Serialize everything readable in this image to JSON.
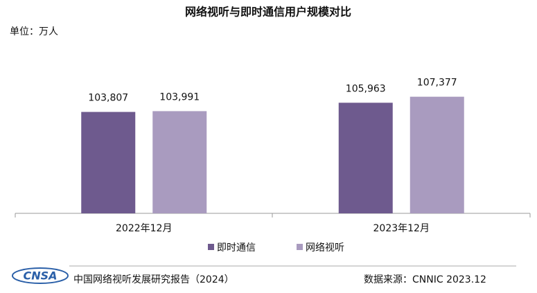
{
  "chart_data": {
    "type": "bar",
    "title": "网络视听与即时通信用户规模对比",
    "unit_label": "单位：万人",
    "categories": [
      "2022年12月",
      "2023年12月"
    ],
    "series": [
      {
        "name": "即时通信",
        "color": "#6e5a8e",
        "values": [
          103807,
          105963
        ],
        "value_labels": [
          "103,807",
          "105,963"
        ]
      },
      {
        "name": "网络视听",
        "color": "#a99bbf",
        "values": [
          103991,
          107377
        ],
        "value_labels": [
          "103,991",
          "107,377"
        ]
      }
    ],
    "ylim": [
      80000,
      120000
    ],
    "footer": {
      "logo": "CNSA",
      "report": "中国网络视听发展研究报告（2024）",
      "source": "数据来源：CNNIC  2023.12"
    }
  }
}
